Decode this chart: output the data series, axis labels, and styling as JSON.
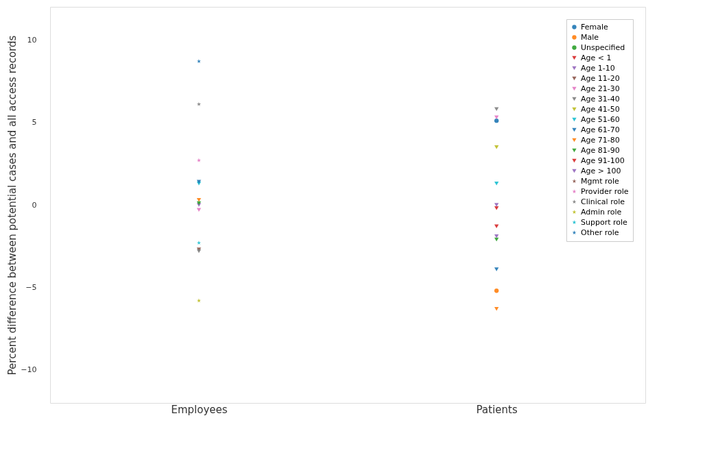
{
  "chart_data": {
    "type": "scatter",
    "ylabel": "Percent difference between potential cases and all access records",
    "categories": [
      "Employees",
      "Patients"
    ],
    "ylim": [
      -12,
      12
    ],
    "yticks": [
      -10,
      -5,
      0,
      5,
      10
    ],
    "grid": false,
    "legend": "top right",
    "series": [
      {
        "name": "Female",
        "color": "#1f77b4",
        "marker": "circle",
        "values": [
          null,
          5.1
        ]
      },
      {
        "name": "Male",
        "color": "#ff7f0e",
        "marker": "circle",
        "values": [
          null,
          -5.2
        ]
      },
      {
        "name": "Unspecified",
        "color": "#2ca02c",
        "marker": "circle",
        "values": [
          null,
          null
        ]
      },
      {
        "name": "Age < 1",
        "color": "#d62728",
        "marker": "triangle",
        "values": [
          null,
          -0.2
        ]
      },
      {
        "name": "Age 1-10",
        "color": "#9467bd",
        "marker": "triangle",
        "values": [
          0.0,
          0.0
        ]
      },
      {
        "name": "Age 11-20",
        "color": "#8c564b",
        "marker": "triangle",
        "values": [
          -2.7,
          null
        ]
      },
      {
        "name": "Age 21-30",
        "color": "#e377c2",
        "marker": "triangle",
        "values": [
          -0.3,
          5.3
        ]
      },
      {
        "name": "Age 31-40",
        "color": "#7f7f7f",
        "marker": "triangle",
        "values": [
          -2.8,
          5.8
        ]
      },
      {
        "name": "Age 41-50",
        "color": "#bcbd22",
        "marker": "triangle",
        "values": [
          null,
          3.5
        ]
      },
      {
        "name": "Age 51-60",
        "color": "#17becf",
        "marker": "triangle",
        "values": [
          1.3,
          1.3
        ]
      },
      {
        "name": "Age 61-70",
        "color": "#1f77b4",
        "marker": "triangle",
        "values": [
          1.4,
          -3.9
        ]
      },
      {
        "name": "Age 71-80",
        "color": "#ff7f0e",
        "marker": "triangle",
        "values": [
          0.3,
          -6.3
        ]
      },
      {
        "name": "Age 81-90",
        "color": "#2ca02c",
        "marker": "triangle",
        "values": [
          0.1,
          -2.1
        ]
      },
      {
        "name": "Age 91-100",
        "color": "#d62728",
        "marker": "triangle",
        "values": [
          null,
          -1.3
        ]
      },
      {
        "name": "Age > 100",
        "color": "#9467bd",
        "marker": "triangle",
        "values": [
          null,
          -1.9
        ]
      },
      {
        "name": "Mgmt role",
        "color": "#8c564b",
        "marker": "star",
        "values": [
          null,
          null
        ]
      },
      {
        "name": "Provider role",
        "color": "#e377c2",
        "marker": "star",
        "values": [
          2.7,
          null
        ]
      },
      {
        "name": "Clinical role",
        "color": "#7f7f7f",
        "marker": "star",
        "values": [
          6.1,
          null
        ]
      },
      {
        "name": "Admin role",
        "color": "#bcbd22",
        "marker": "star",
        "values": [
          -5.8,
          null
        ]
      },
      {
        "name": "Support role",
        "color": "#17becf",
        "marker": "star",
        "values": [
          -2.3,
          null
        ]
      },
      {
        "name": "Other role",
        "color": "#1f77b4",
        "marker": "star",
        "values": [
          8.7,
          null
        ]
      }
    ]
  }
}
